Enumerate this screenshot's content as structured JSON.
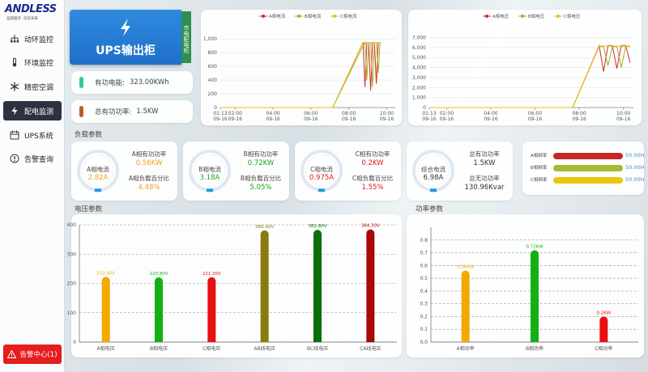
{
  "sidebar": {
    "logo": "ANDLESS",
    "slogan": "蓝鸥服务  创造未来",
    "menu": [
      "动环监控",
      "环境监控",
      "精密空调",
      "配电监测",
      "UPS系统",
      "告警查询"
    ],
    "alarm": "告警中心(1)"
  },
  "header": {
    "title": "UPS输出柜",
    "tab": "市电配电柜"
  },
  "energy": {
    "label": "有功电能:",
    "value": "323.00KWh"
  },
  "total_power": {
    "label": "总有功功率:",
    "value": "1.5KW"
  },
  "sections": {
    "load": "负载参数",
    "voltage": "电压参数",
    "power": "功率参数"
  },
  "gauges": [
    {
      "name": "A相电流",
      "value": "2.82A",
      "label1": "A相有功功率",
      "value1": "0.56KW",
      "label2": "A相负载百分比",
      "value2": "4.48%",
      "color": "#f0a020"
    },
    {
      "name": "B相电流",
      "value": "3.18A",
      "label1": "B相有功功率",
      "value1": "0.72KW",
      "label2": "B相负载百分比",
      "value2": "5.05%",
      "color": "#1aa81a"
    },
    {
      "name": "C相电流",
      "value": "0.975A",
      "label1": "C相有功功率",
      "value1": "0.2KW",
      "label2": "C相负载百分比",
      "value2": "1.55%",
      "color": "#e01818"
    },
    {
      "name": "综合电流",
      "value": "6.98A",
      "label1": "总有功功率",
      "value1": "1.5KW",
      "label2": "总无功功率",
      "value2": "130.96Kvar",
      "color": "#333333"
    }
  ],
  "frequency": [
    {
      "name": "A相频率",
      "value": "50.00Hz",
      "color": "#c62828"
    },
    {
      "name": "B相频率",
      "value": "50.00Hz",
      "color": "#a8b830"
    },
    {
      "name": "C相频率",
      "value": "50.00Hz",
      "color": "#e8c810"
    }
  ],
  "chart_data": [
    {
      "type": "line",
      "x": [
        1.2167,
        3,
        5,
        7.15,
        8.75,
        8.85,
        8.95,
        9.05,
        9.15,
        9.25,
        9.35,
        9.45,
        9.55,
        9.65
      ],
      "series": [
        {
          "name": "A相电流",
          "color": "#d42a2a",
          "values": [
            0,
            0,
            0,
            0,
            950,
            300,
            950,
            950,
            250,
            950,
            950,
            350,
            950,
            950
          ]
        },
        {
          "name": "B相电流",
          "color": "#a8b020",
          "values": [
            0,
            0,
            0,
            0,
            900,
            950,
            400,
            950,
            950,
            300,
            950,
            950,
            500,
            950
          ]
        },
        {
          "name": "C相电流",
          "color": "#e8c010",
          "values": [
            0,
            0,
            0,
            0,
            950,
            950,
            950,
            950,
            950,
            950,
            950,
            950,
            950,
            950
          ]
        }
      ],
      "xlim": [
        1.2167,
        10.45
      ],
      "xticks": [
        {
          "value": 1.2167,
          "label": "01:13\n09-16"
        },
        {
          "value": 2,
          "label": "02:00\n09-16"
        },
        {
          "value": 4,
          "label": "04:00\n09-16"
        },
        {
          "value": 6,
          "label": "06:00\n09-16"
        },
        {
          "value": 8,
          "label": "08:00\n09-16"
        },
        {
          "value": 10,
          "label": "10:00\n09-16"
        }
      ],
      "ylim": [
        0,
        1050
      ],
      "yticks": [
        0,
        200,
        400,
        600,
        800,
        {
          "value": 1000,
          "label": "1,000"
        }
      ],
      "grid": true
    },
    {
      "type": "line",
      "x": [
        1.2167,
        3,
        5,
        7.7,
        8.9,
        9.1,
        9.3,
        9.5,
        9.7,
        9.9,
        10.1,
        10.3
      ],
      "series": [
        {
          "name": "A相电压",
          "color": "#d42a2a",
          "values": [
            0,
            0,
            0,
            0,
            6200,
            3600,
            6200,
            6200,
            3900,
            6200,
            6200,
            4500
          ]
        },
        {
          "name": "B相电压",
          "color": "#a8b020",
          "values": [
            0,
            0,
            0,
            0,
            6100,
            6100,
            4200,
            6100,
            6100,
            4000,
            6100,
            6100
          ]
        },
        {
          "name": "C相电压",
          "color": "#e8c010",
          "values": [
            0,
            0,
            0,
            0,
            6150,
            6150,
            6150,
            6150,
            6150,
            6150,
            6150,
            6150
          ]
        }
      ],
      "xlim": [
        1.2167,
        10.45
      ],
      "xticks": [
        {
          "value": 1.2167,
          "label": "01:13\n09-16"
        },
        {
          "value": 2,
          "label": "02:00\n09-16"
        },
        {
          "value": 4,
          "label": "04:00\n09-16"
        },
        {
          "value": 6,
          "label": "06:00\n09-16"
        },
        {
          "value": 8,
          "label": "08:00\n09-16"
        },
        {
          "value": 10,
          "label": "10:00\n09-16"
        }
      ],
      "ylim": [
        0,
        7200
      ],
      "yticks": [
        0,
        {
          "value": 1000,
          "label": "1,000"
        },
        {
          "value": 2000,
          "label": "2,000"
        },
        {
          "value": 3000,
          "label": "3,000"
        },
        {
          "value": 4000,
          "label": "4,000"
        },
        {
          "value": 5000,
          "label": "5,000"
        },
        {
          "value": 6000,
          "label": "6,000"
        },
        {
          "value": 7000,
          "label": "7,000"
        }
      ],
      "grid": true
    },
    {
      "type": "bar",
      "categories": [
        "A相电压",
        "B相电压",
        "C相电压",
        "AB线电压",
        "BC线电压",
        "CA线电压"
      ],
      "values": [
        222.5,
        220.8,
        221.3,
        380.9,
        382.8,
        384.3
      ],
      "value_labels": [
        "222.50V",
        "220.80V",
        "221.30V",
        "380.90V",
        "382.80V",
        "384.30V"
      ],
      "colors": [
        "#f5a800",
        "#12b012",
        "#e81010",
        "#8a7a10",
        "#0a6e0a",
        "#a80808"
      ],
      "ylim": [
        0,
        400
      ],
      "yticks": [
        0,
        100,
        200,
        300,
        400
      ],
      "grid": true,
      "grid_style": "dashed"
    },
    {
      "type": "bar",
      "categories": [
        "A相功率",
        "B相功率",
        "C相功率"
      ],
      "values": [
        0.56,
        0.72,
        0.2
      ],
      "value_labels": [
        "0.56KW",
        "0.72KW",
        "0.2KW"
      ],
      "colors": [
        "#f5a800",
        "#12b012",
        "#e81010"
      ],
      "ylim": [
        0,
        0.9
      ],
      "yticks": [
        {
          "value": 0,
          "label": "0.0"
        },
        0.1,
        0.2,
        0.3,
        0.4,
        0.5,
        0.6,
        0.7,
        0.8
      ],
      "grid": true,
      "grid_style": "dashed"
    }
  ]
}
